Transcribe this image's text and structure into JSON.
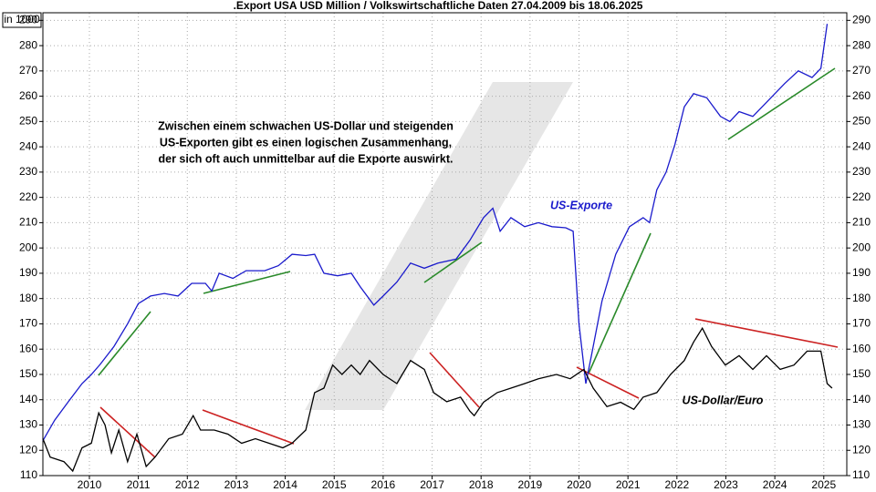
{
  "chart_data": {
    "type": "line",
    "title": ".Export USA USD Million / Volkswirtschaftliche Daten 27.04.2009 bis 18.06.2025",
    "unit_label": "in 1000",
    "annotation": [
      "Zwischen einem schwachen US-Dollar und steigenden",
      "US-Exporten gibt es einen logischen Zusammenhang,",
      "der sich oft auch unmittelbar auf die Exporte auswirkt."
    ],
    "xlim": [
      2009.05,
      2025.47
    ],
    "xticks": [
      2010,
      2011,
      2012,
      2013,
      2014,
      2015,
      2016,
      2017,
      2018,
      2019,
      2020,
      2021,
      2022,
      2023,
      2024,
      2025
    ],
    "ylim": [
      110,
      293
    ],
    "yticks": [
      110,
      120,
      130,
      140,
      150,
      160,
      170,
      180,
      190,
      200,
      210,
      220,
      230,
      240,
      250,
      260,
      270,
      280,
      290
    ],
    "grid": true,
    "series": [
      {
        "name": "US-Exporte",
        "color": "#1a1acc",
        "x": [
          2009.05,
          2009.29,
          2009.57,
          2009.85,
          2010.04,
          2010.22,
          2010.5,
          2010.78,
          2011.0,
          2011.25,
          2011.53,
          2011.81,
          2012.09,
          2012.37,
          2012.5,
          2012.65,
          2012.93,
          2013.2,
          2013.58,
          2013.86,
          2014.14,
          2014.42,
          2014.6,
          2014.79,
          2015.07,
          2015.35,
          2015.53,
          2015.81,
          2016.0,
          2016.28,
          2016.56,
          2016.84,
          2017.12,
          2017.49,
          2017.77,
          2018.05,
          2018.24,
          2018.39,
          2018.61,
          2018.89,
          2019.17,
          2019.45,
          2019.73,
          2019.88,
          2020.0,
          2020.14,
          2020.25,
          2020.47,
          2020.75,
          2021.03,
          2021.31,
          2021.44,
          2021.59,
          2021.78,
          2021.96,
          2022.15,
          2022.34,
          2022.61,
          2022.89,
          2023.08,
          2023.27,
          2023.55,
          2023.83,
          2024.2,
          2024.48,
          2024.76,
          2024.94,
          2025.07
        ],
        "values": [
          123.8,
          131.9,
          139.2,
          146.4,
          150,
          154,
          161,
          170,
          178,
          181,
          182,
          181,
          186,
          186,
          183,
          190,
          188,
          191,
          191,
          193,
          197.5,
          197,
          197.5,
          190,
          189,
          190,
          184.7,
          177.4,
          181,
          186.5,
          194,
          192,
          194,
          195.6,
          203,
          212,
          215.7,
          206.6,
          212,
          208.4,
          210,
          208.4,
          208,
          206.6,
          170,
          146.4,
          157,
          179,
          197.5,
          208.4,
          212,
          210,
          223,
          230,
          241,
          255.8,
          261,
          259.4,
          252,
          250,
          253.9,
          252,
          257.6,
          265,
          270,
          267.4,
          271,
          288.6
        ]
      },
      {
        "name": "US-Dollar/Euro",
        "color": "#000000",
        "x": [
          2009.05,
          2009.2,
          2009.48,
          2009.66,
          2009.85,
          2010.04,
          2010.19,
          2010.32,
          2010.45,
          2010.6,
          2010.78,
          2010.97,
          2011.16,
          2011.34,
          2011.62,
          2011.9,
          2012.12,
          2012.27,
          2012.55,
          2012.83,
          2013.11,
          2013.39,
          2013.67,
          2013.95,
          2014.14,
          2014.42,
          2014.6,
          2014.79,
          2014.97,
          2015.16,
          2015.35,
          2015.53,
          2015.72,
          2016.0,
          2016.28,
          2016.56,
          2016.84,
          2017.03,
          2017.3,
          2017.58,
          2017.77,
          2017.86,
          2018.05,
          2018.33,
          2018.61,
          2018.89,
          2019.17,
          2019.54,
          2019.82,
          2020.1,
          2020.29,
          2020.57,
          2020.85,
          2021.12,
          2021.31,
          2021.59,
          2021.87,
          2022.15,
          2022.34,
          2022.52,
          2022.71,
          2022.99,
          2023.27,
          2023.55,
          2023.83,
          2024.11,
          2024.39,
          2024.66,
          2024.94,
          2025.07,
          2025.17
        ],
        "values": [
          124.6,
          117.3,
          115.5,
          111.8,
          121,
          122.8,
          134.8,
          130,
          119,
          128,
          115.5,
          126.4,
          113.6,
          117.3,
          124.6,
          126.4,
          133.7,
          128,
          128,
          126.4,
          122.8,
          124.6,
          122.8,
          121,
          122.8,
          128,
          142.8,
          144.6,
          153.7,
          150,
          153.7,
          150,
          155.5,
          150,
          146.4,
          155.5,
          152,
          142.8,
          139.2,
          141,
          135.5,
          133.7,
          139,
          142.8,
          144.6,
          146.4,
          148.3,
          150,
          148.3,
          152,
          144.6,
          137.3,
          139,
          136.2,
          141,
          142.8,
          150,
          155.5,
          162.8,
          168.3,
          161,
          153.7,
          157.4,
          152,
          157.4,
          152,
          153.7,
          159.2,
          159.2,
          146.4,
          144.6
        ]
      }
    ]
  }
}
